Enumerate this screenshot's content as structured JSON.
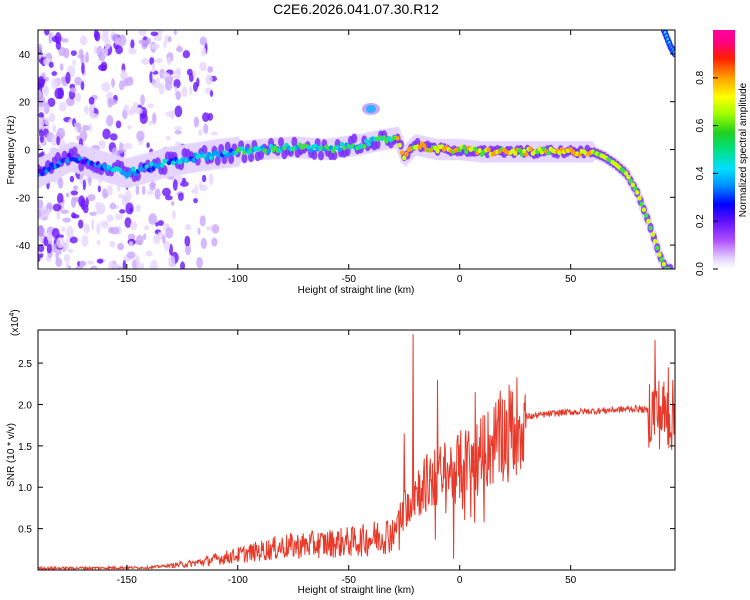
{
  "title": "C2E6.2026.041.07.30.R12",
  "chart_data": [
    {
      "type": "heatmap",
      "name": "spectrogram",
      "xlabel": "Height of straight line (km)",
      "ylabel": "Frequency (Hz)",
      "xlim": [
        -190,
        97
      ],
      "ylim": [
        -50,
        50
      ],
      "xticks": [
        -150,
        -100,
        -50,
        0,
        50
      ],
      "yticks": [
        -40,
        -20,
        0,
        20,
        40
      ],
      "colorbar": {
        "label": "Normalized spectral amplitude",
        "range": [
          0,
          1
        ],
        "ticks": [
          "0.0",
          "0.2",
          "0.4",
          "0.6",
          "0.8"
        ],
        "tick_values": [
          0,
          0.2,
          0.4,
          0.6,
          0.8
        ]
      },
      "ridge": [
        {
          "x": -190,
          "y": -10
        },
        {
          "x": -175,
          "y": -3
        },
        {
          "x": -150,
          "y": -10
        },
        {
          "x": -130,
          "y": -5
        },
        {
          "x": -110,
          "y": -2
        },
        {
          "x": -90,
          "y": 0
        },
        {
          "x": -75,
          "y": 1
        },
        {
          "x": -60,
          "y": 0
        },
        {
          "x": -45,
          "y": 2
        },
        {
          "x": -35,
          "y": 4
        },
        {
          "x": -28,
          "y": 5
        },
        {
          "x": -25,
          "y": -3
        },
        {
          "x": -20,
          "y": 2
        },
        {
          "x": -10,
          "y": 0
        },
        {
          "x": 0,
          "y": 0
        },
        {
          "x": 10,
          "y": -1
        },
        {
          "x": 30,
          "y": -1
        },
        {
          "x": 60,
          "y": -1
        },
        {
          "x": 65,
          "y": -3
        },
        {
          "x": 70,
          "y": -6
        },
        {
          "x": 75,
          "y": -10
        },
        {
          "x": 80,
          "y": -18
        },
        {
          "x": 85,
          "y": -30
        },
        {
          "x": 90,
          "y": -44
        },
        {
          "x": 93,
          "y": -50
        }
      ],
      "upper_ridge": [
        {
          "x": 92,
          "y": 50
        },
        {
          "x": 95,
          "y": 43
        },
        {
          "x": 97,
          "y": 40
        }
      ],
      "outlier": {
        "x": -40,
        "y": 17
      }
    },
    {
      "type": "line",
      "name": "snr",
      "xlabel": "Height of straight line (km)",
      "ylabel": "SNR (10 * v/v)",
      "yscale_note": "(x10",
      "yscale_exp": "4",
      "xlim": [
        -190,
        97
      ],
      "ylim": [
        0,
        2.9
      ],
      "xticks": [
        -150,
        -100,
        -50,
        0,
        50
      ],
      "yticks": [
        0.5,
        1.0,
        1.5,
        2.0,
        2.5
      ],
      "envelope": [
        {
          "x": -190,
          "y": 0.02
        },
        {
          "x": -140,
          "y": 0.03
        },
        {
          "x": -120,
          "y": 0.08
        },
        {
          "x": -100,
          "y": 0.18
        },
        {
          "x": -80,
          "y": 0.28
        },
        {
          "x": -60,
          "y": 0.32
        },
        {
          "x": -45,
          "y": 0.35
        },
        {
          "x": -30,
          "y": 0.45
        },
        {
          "x": -22,
          "y": 0.9
        },
        {
          "x": -15,
          "y": 1.05
        },
        {
          "x": 0,
          "y": 1.25
        },
        {
          "x": 10,
          "y": 1.4
        },
        {
          "x": 20,
          "y": 1.65
        },
        {
          "x": 30,
          "y": 1.85
        },
        {
          "x": 45,
          "y": 1.9
        },
        {
          "x": 60,
          "y": 1.92
        },
        {
          "x": 80,
          "y": 1.95
        },
        {
          "x": 90,
          "y": 1.9
        },
        {
          "x": 97,
          "y": 1.85
        }
      ],
      "spikes": [
        {
          "x": -21,
          "y": 2.85
        },
        {
          "x": -25,
          "y": 1.65
        },
        {
          "x": -10,
          "y": 2.3
        },
        {
          "x": 7,
          "y": 2.15
        },
        {
          "x": 88,
          "y": 2.78
        },
        {
          "x": 94,
          "y": 2.45
        }
      ],
      "line_color": "#e83a2a"
    }
  ]
}
